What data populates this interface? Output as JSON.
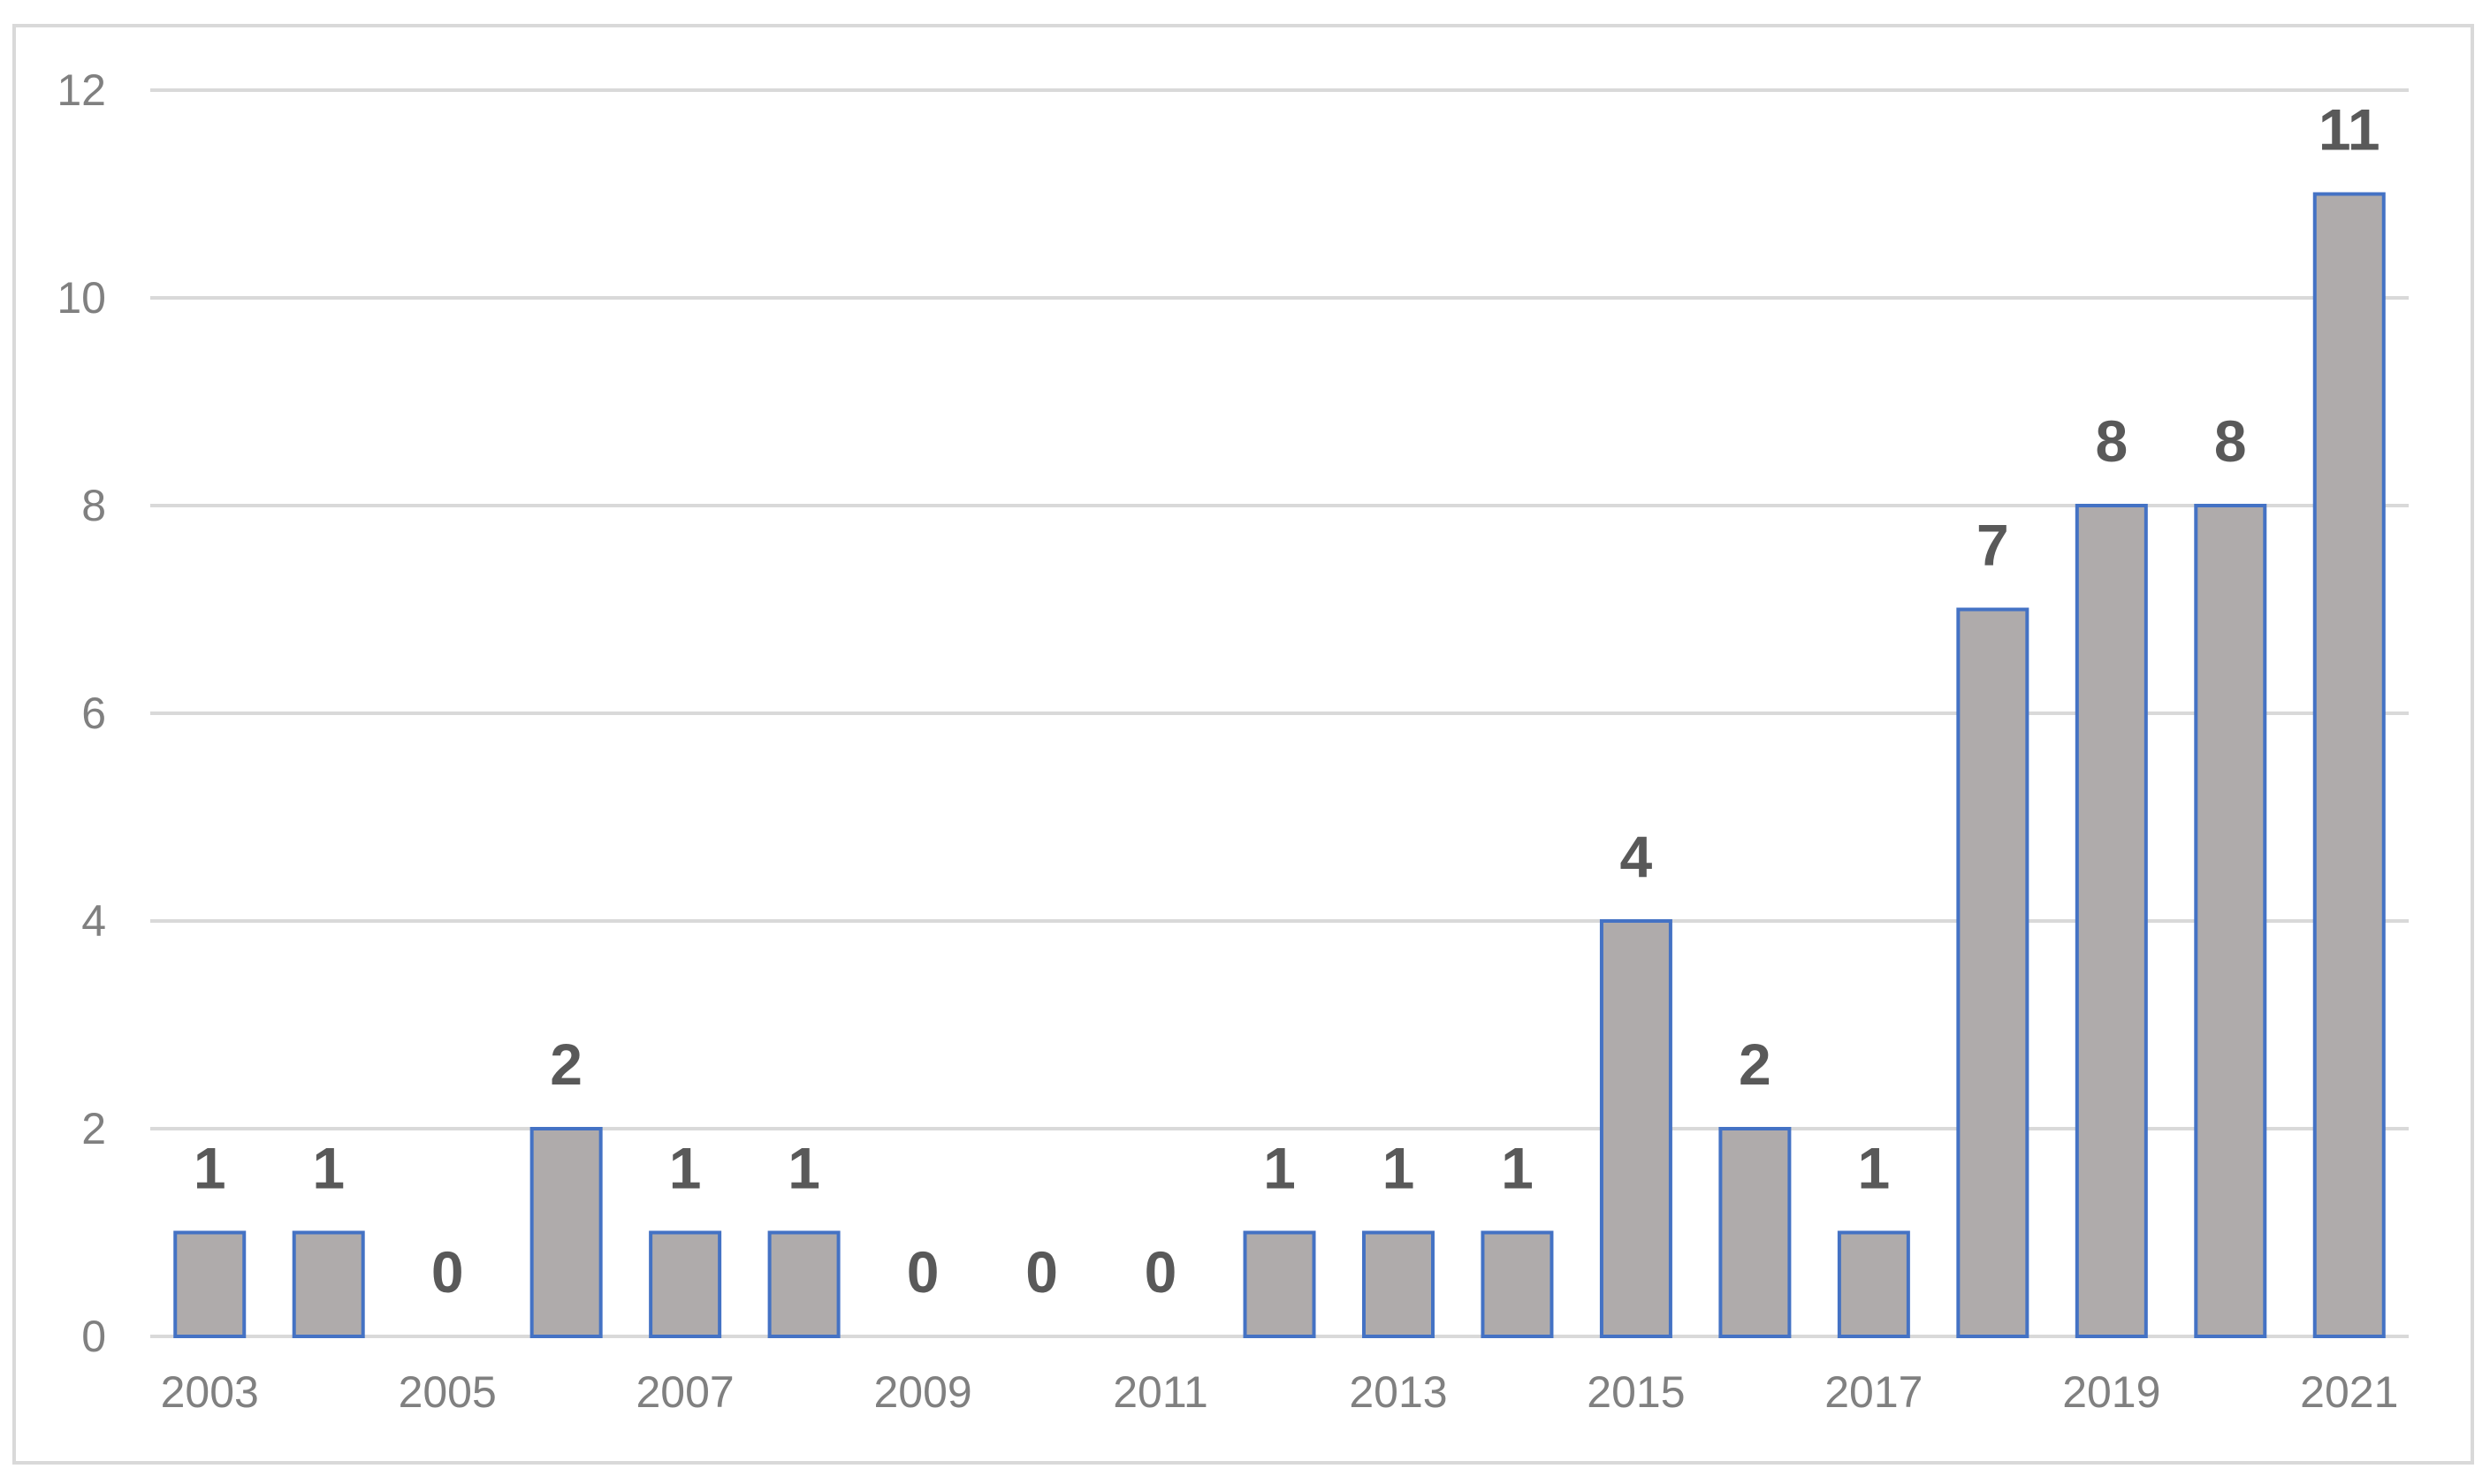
{
  "chart_data": {
    "type": "bar",
    "categories": [
      "2003",
      "2004",
      "2005",
      "2006",
      "2007",
      "2008",
      "2009",
      "2010",
      "2011",
      "2012",
      "2013",
      "2014",
      "2015",
      "2016",
      "2017",
      "2018",
      "2019",
      "2020",
      "2021"
    ],
    "values": [
      1,
      1,
      0,
      2,
      1,
      1,
      0,
      0,
      0,
      1,
      1,
      1,
      4,
      2,
      1,
      7,
      8,
      8,
      11
    ],
    "x_tick_labels": [
      "2003",
      "2005",
      "2007",
      "2009",
      "2011",
      "2013",
      "2015",
      "2017",
      "2019",
      "2021"
    ],
    "y_ticks": [
      0,
      2,
      4,
      6,
      8,
      10,
      12
    ],
    "ylim": [
      0,
      12
    ],
    "title": "",
    "xlabel": "",
    "ylabel": "",
    "grid": true,
    "legend": "none",
    "colors": {
      "bar_fill": "#afabab",
      "bar_stroke": "#4472c4",
      "grid": "#d9d9d9",
      "tick_text": "#808080",
      "data_label_text": "#595959"
    }
  }
}
